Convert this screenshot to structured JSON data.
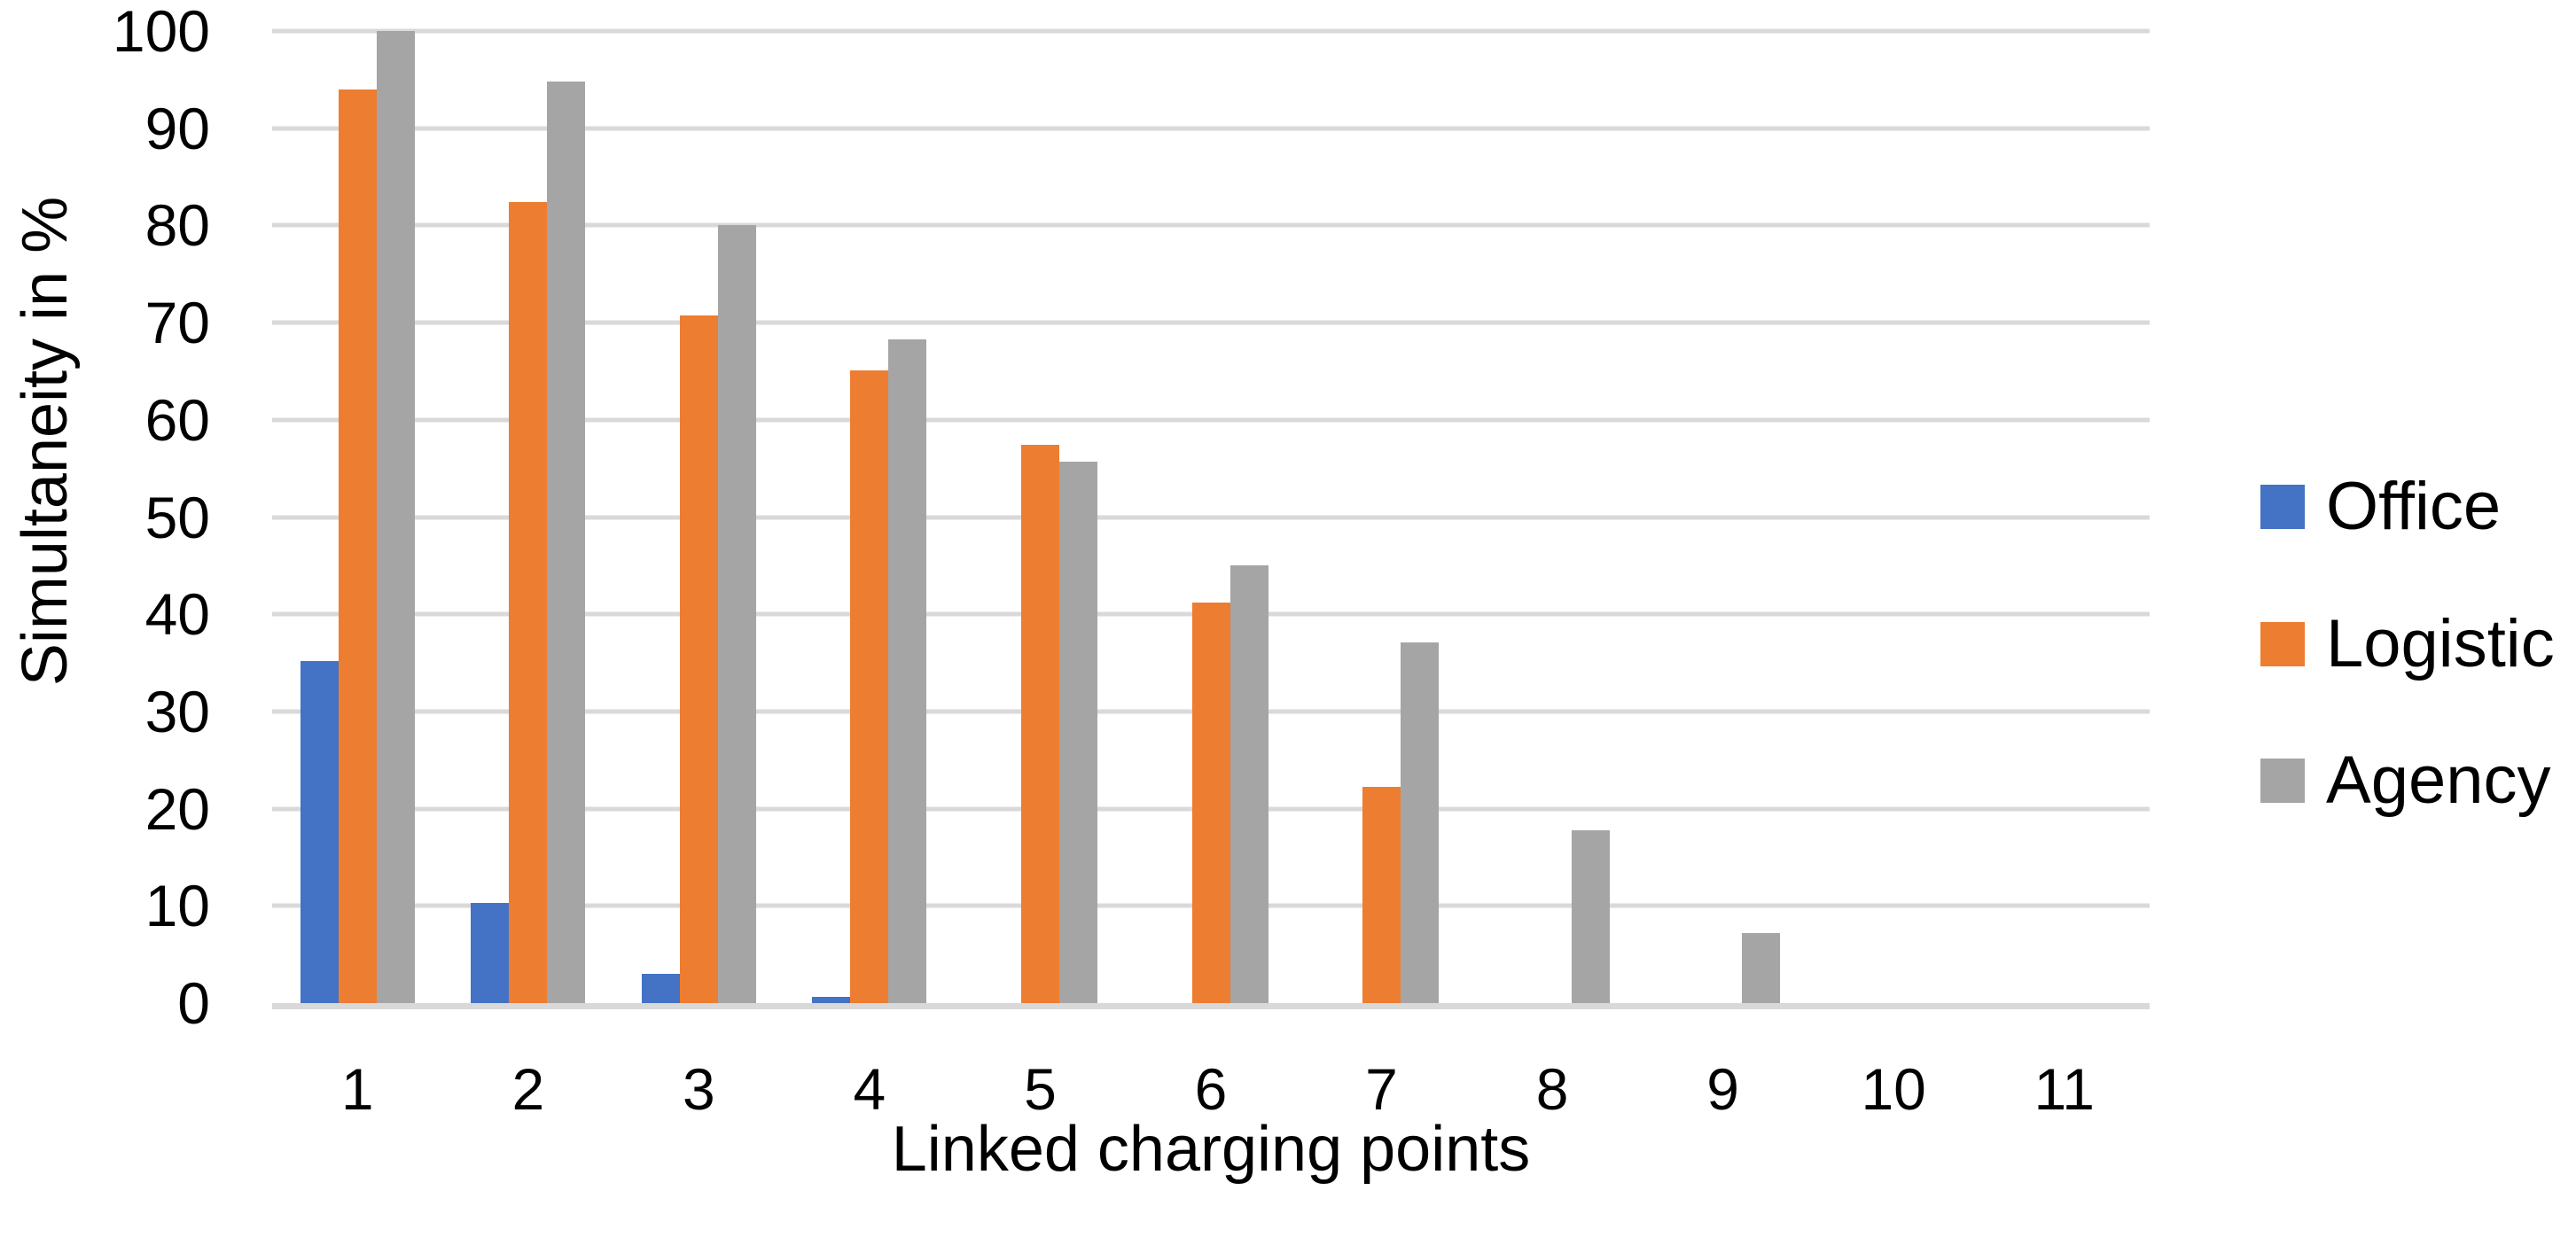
{
  "chart_data": {
    "type": "bar",
    "title": "",
    "xlabel": "Linked charging points",
    "ylabel": "Simultaneity in %",
    "categories": [
      "1",
      "2",
      "3",
      "4",
      "5",
      "6",
      "7",
      "8",
      "9",
      "10",
      "11"
    ],
    "series": [
      {
        "name": "Office",
        "color": "#4472C4",
        "values": [
          35.2,
          10.3,
          3.0,
          0.6,
          0,
          0,
          0,
          0,
          0,
          0,
          0
        ]
      },
      {
        "name": "Logistic",
        "color": "#ED7D31",
        "values": [
          94.0,
          82.4,
          70.7,
          65.1,
          57.4,
          41.2,
          22.2,
          0,
          0,
          0,
          0
        ]
      },
      {
        "name": "Agency",
        "color": "#A5A5A5",
        "values": [
          100.0,
          94.8,
          80.0,
          68.3,
          55.7,
          45.0,
          37.1,
          17.8,
          7.2,
          0,
          0
        ]
      }
    ],
    "y_ticks": [
      "0",
      "10",
      "20",
      "30",
      "40",
      "50",
      "60",
      "70",
      "80",
      "90",
      "100"
    ],
    "ylim": [
      0,
      100
    ],
    "grid": "horizontal",
    "legend_position": "right",
    "gridline_color": "#D9D9D9",
    "axis_line_color": "#D9D9D9",
    "text_color": "#000000",
    "background_color": "#FFFFFF"
  }
}
